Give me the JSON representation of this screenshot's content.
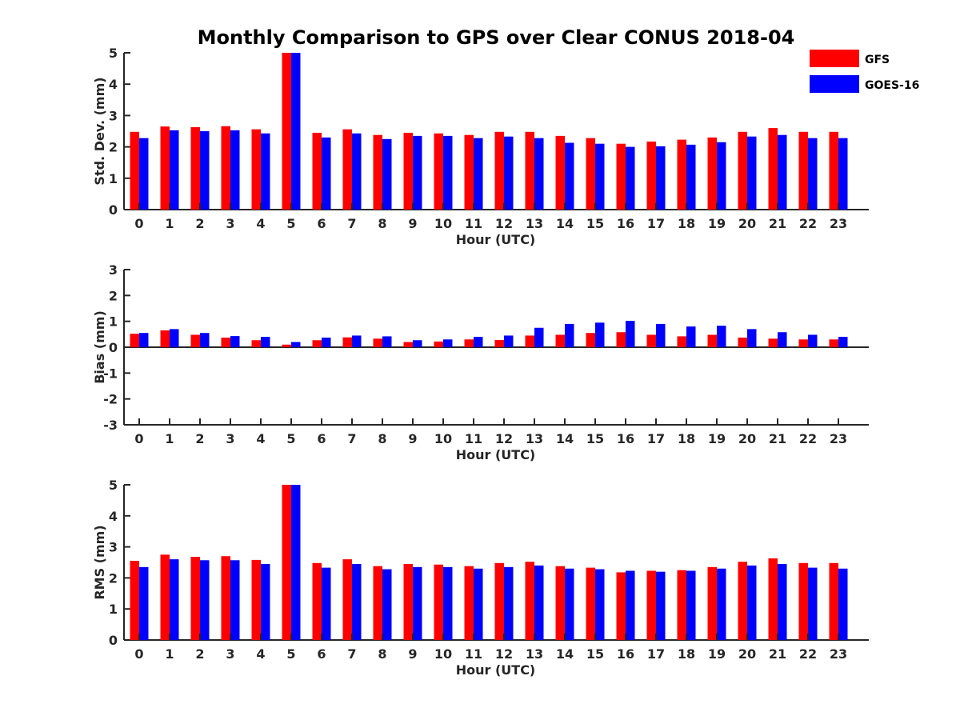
{
  "chart_data": [
    {
      "type": "bar",
      "title": "Monthly Comparison to GPS over Clear CONUS 2018-04",
      "xlabel": "Hour (UTC)",
      "ylabel": "Std. Dev. (mm)",
      "ylim": [
        0,
        5
      ],
      "yticks": [
        "0",
        "1",
        "2",
        "3",
        "4",
        "5"
      ],
      "categories": [
        "0",
        "1",
        "2",
        "3",
        "4",
        "5",
        "6",
        "7",
        "8",
        "9",
        "10",
        "11",
        "12",
        "13",
        "14",
        "15",
        "16",
        "17",
        "18",
        "19",
        "20",
        "21",
        "22",
        "23"
      ],
      "series": [
        {
          "name": "GFS",
          "color": "#ff0000",
          "values": [
            2.48,
            2.65,
            2.63,
            2.66,
            2.56,
            5.0,
            2.45,
            2.56,
            2.38,
            2.45,
            2.43,
            2.38,
            2.48,
            2.48,
            2.35,
            2.28,
            2.1,
            2.17,
            2.23,
            2.3,
            2.48,
            2.6,
            2.48,
            2.48
          ]
        },
        {
          "name": "GOES-16",
          "color": "#0000ff",
          "values": [
            2.28,
            2.53,
            2.5,
            2.53,
            2.43,
            5.0,
            2.3,
            2.43,
            2.25,
            2.35,
            2.35,
            2.28,
            2.33,
            2.28,
            2.13,
            2.1,
            2.0,
            2.02,
            2.07,
            2.15,
            2.33,
            2.38,
            2.28,
            2.28
          ]
        }
      ]
    },
    {
      "type": "bar",
      "title": "",
      "xlabel": "Hour (UTC)",
      "ylabel": "Bias (mm)",
      "ylim": [
        -3,
        3
      ],
      "yticks": [
        "-3",
        "-2",
        "-1",
        "0",
        "1",
        "2",
        "3"
      ],
      "categories": [
        "0",
        "1",
        "2",
        "3",
        "4",
        "5",
        "6",
        "7",
        "8",
        "9",
        "10",
        "11",
        "12",
        "13",
        "14",
        "15",
        "16",
        "17",
        "18",
        "19",
        "20",
        "21",
        "22",
        "23"
      ],
      "series": [
        {
          "name": "GFS",
          "color": "#ff0000",
          "values": [
            0.52,
            0.65,
            0.48,
            0.37,
            0.27,
            0.1,
            0.27,
            0.38,
            0.33,
            0.2,
            0.22,
            0.3,
            0.28,
            0.45,
            0.48,
            0.55,
            0.58,
            0.48,
            0.42,
            0.48,
            0.37,
            0.33,
            0.3,
            0.3
          ]
        },
        {
          "name": "GOES-16",
          "color": "#0000ff",
          "values": [
            0.55,
            0.7,
            0.55,
            0.43,
            0.4,
            0.2,
            0.37,
            0.45,
            0.42,
            0.27,
            0.3,
            0.4,
            0.45,
            0.75,
            0.9,
            0.95,
            1.02,
            0.9,
            0.8,
            0.83,
            0.7,
            0.58,
            0.48,
            0.4
          ]
        }
      ]
    },
    {
      "type": "bar",
      "title": "",
      "xlabel": "Hour (UTC)",
      "ylabel": "RMS (mm)",
      "ylim": [
        0,
        5
      ],
      "yticks": [
        "0",
        "1",
        "2",
        "3",
        "4",
        "5"
      ],
      "categories": [
        "0",
        "1",
        "2",
        "3",
        "4",
        "5",
        "6",
        "7",
        "8",
        "9",
        "10",
        "11",
        "12",
        "13",
        "14",
        "15",
        "16",
        "17",
        "18",
        "19",
        "20",
        "21",
        "22",
        "23"
      ],
      "series": [
        {
          "name": "GFS",
          "color": "#ff0000",
          "values": [
            2.55,
            2.75,
            2.68,
            2.7,
            2.58,
            5.0,
            2.48,
            2.6,
            2.38,
            2.45,
            2.43,
            2.38,
            2.48,
            2.52,
            2.38,
            2.33,
            2.18,
            2.23,
            2.25,
            2.35,
            2.52,
            2.63,
            2.48,
            2.48
          ]
        },
        {
          "name": "GOES-16",
          "color": "#0000ff",
          "values": [
            2.35,
            2.6,
            2.57,
            2.57,
            2.45,
            5.0,
            2.33,
            2.45,
            2.28,
            2.35,
            2.35,
            2.3,
            2.35,
            2.4,
            2.3,
            2.28,
            2.23,
            2.2,
            2.23,
            2.3,
            2.4,
            2.45,
            2.33,
            2.3
          ]
        }
      ]
    }
  ],
  "legend": {
    "placement": "top-right",
    "items": [
      {
        "label": "GFS",
        "color": "#ff0000"
      },
      {
        "label": "GOES-16",
        "color": "#0000ff"
      }
    ]
  }
}
